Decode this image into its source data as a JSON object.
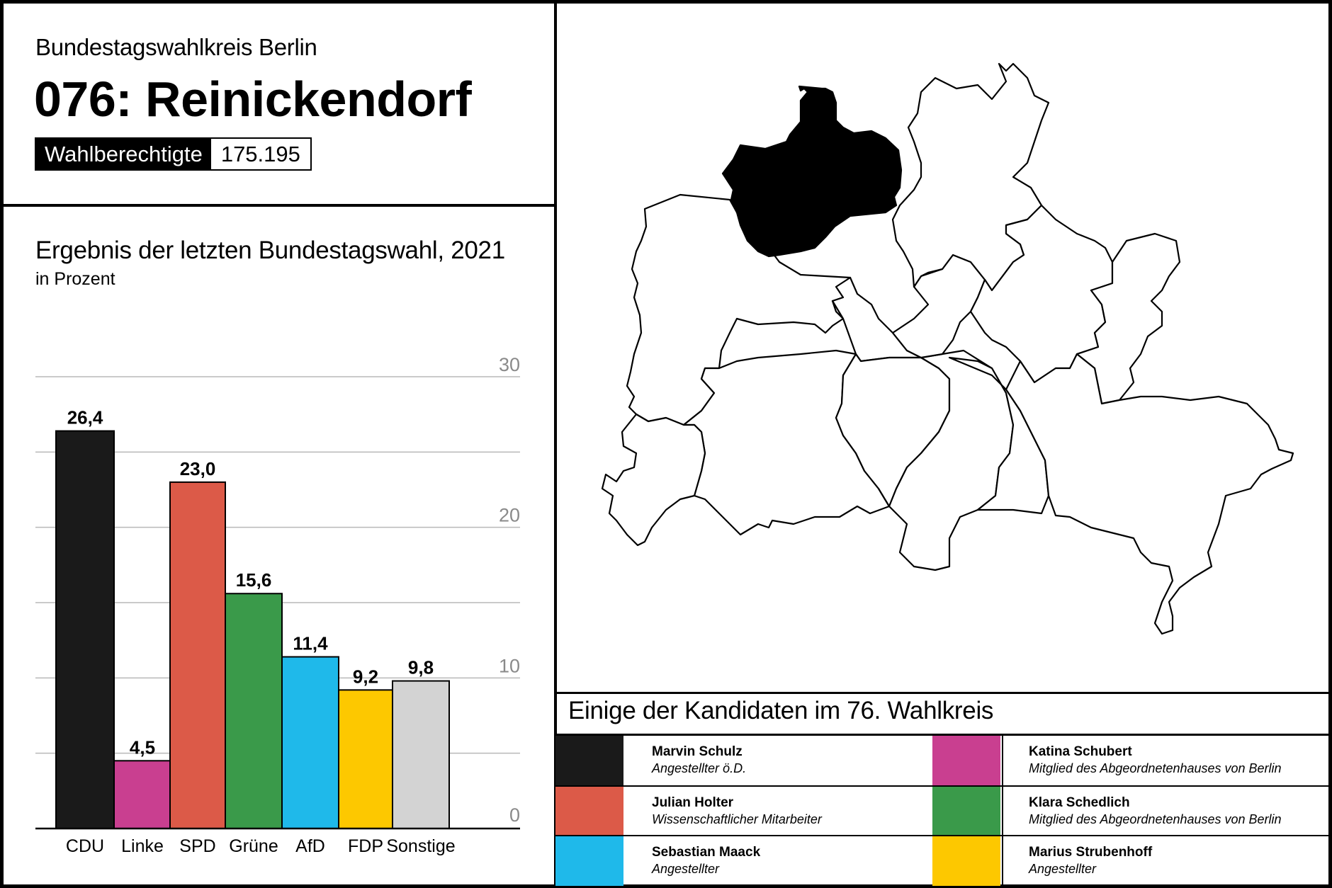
{
  "header": {
    "subtitle": "Bundestagswahlkreis Berlin",
    "title": "076: Reinickendorf",
    "voters_label": "Wahlberechtigte",
    "voters_value": "175.195"
  },
  "chart_data": {
    "type": "bar",
    "title": "Ergebnis der letzten Bundestagswahl, 2021",
    "subtitle": "in Prozent",
    "categories": [
      "CDU",
      "Linke",
      "SPD",
      "Grüne",
      "AfD",
      "FDP",
      "Sonstige"
    ],
    "values": [
      26.4,
      4.5,
      23.0,
      15.6,
      11.4,
      9.2,
      9.8
    ],
    "value_labels": [
      "26,4",
      "4,5",
      "23,0",
      "15,6",
      "11,4",
      "9,2",
      "9,8"
    ],
    "colors": [
      "#1a1a1a",
      "#c93f90",
      "#dc5a48",
      "#3a9a4a",
      "#1fb9ea",
      "#fdc800",
      "#d3d3d3"
    ],
    "ylim": [
      0,
      30
    ],
    "yticks": [
      0,
      10,
      20,
      30
    ],
    "grid": true
  },
  "map": {
    "highlight_color": "#000000"
  },
  "candidates": {
    "heading": "Einige der Kandidaten im 76. Wahlkreis",
    "items": [
      {
        "name": "Marvin Schulz",
        "job": "Angestellter ö.D.",
        "color": "#1a1a1a"
      },
      {
        "name": "Katina Schubert",
        "job": "Mitglied des Abgeordnetenhauses von Berlin",
        "color": "#c93f90"
      },
      {
        "name": "Julian Holter",
        "job": "Wissenschaftlicher Mitarbeiter",
        "color": "#dc5a48"
      },
      {
        "name": "Klara Schedlich",
        "job": "Mitglied des Abgeordnetenhauses von Berlin",
        "color": "#3a9a4a"
      },
      {
        "name": "Sebastian Maack",
        "job": "Angestellter",
        "color": "#1fb9ea"
      },
      {
        "name": "Marius Strubenhoff",
        "job": "Angestellter",
        "color": "#fdc800"
      }
    ]
  }
}
